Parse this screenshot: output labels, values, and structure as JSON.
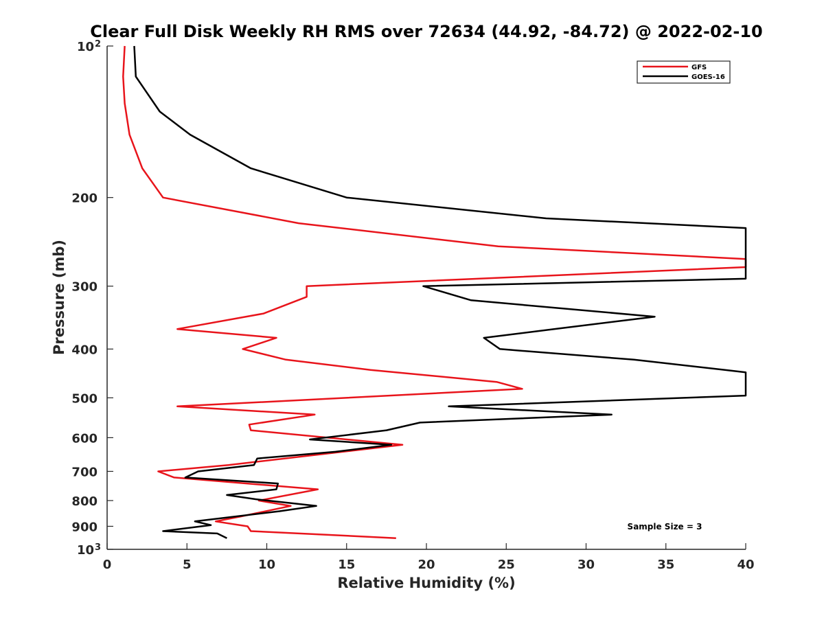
{
  "chart_data": {
    "type": "line",
    "title": "Clear Full Disk Weekly RH RMS over 72634 (44.92, -84.72) @ 2022-02-10",
    "xlabel": "Relative Humidity (%)",
    "ylabel": "Pressure (mb)",
    "xlim": [
      0,
      40
    ],
    "ylim": [
      100,
      1000
    ],
    "yscale": "log",
    "yreversed": true,
    "xticks": [
      0,
      5,
      10,
      15,
      20,
      25,
      30,
      35,
      40
    ],
    "xtick_labels": [
      "0",
      "5",
      "10",
      "15",
      "20",
      "25",
      "30",
      "35",
      "40"
    ],
    "yticks": [
      100,
      200,
      300,
      400,
      500,
      600,
      700,
      800,
      900,
      1000
    ],
    "ytick_labels": [
      {
        "base": "10",
        "exp": "2"
      },
      {
        "base": "200",
        "exp": ""
      },
      {
        "base": "300",
        "exp": ""
      },
      {
        "base": "400",
        "exp": ""
      },
      {
        "base": "500",
        "exp": ""
      },
      {
        "base": "600",
        "exp": ""
      },
      {
        "base": "700",
        "exp": ""
      },
      {
        "base": "800",
        "exp": ""
      },
      {
        "base": "900",
        "exp": ""
      },
      {
        "base": "10",
        "exp": "3"
      }
    ],
    "grid": false,
    "legend_position": "top-right",
    "annotation": "Sample Size = 3",
    "series": [
      {
        "name": "GFS",
        "color": "#e8141b",
        "points": [
          [
            1.1,
            100
          ],
          [
            1.0,
            115
          ],
          [
            1.1,
            130
          ],
          [
            1.4,
            150
          ],
          [
            2.2,
            175
          ],
          [
            3.5,
            200
          ],
          [
            12.0,
            225
          ],
          [
            24.5,
            250
          ],
          [
            40,
            265
          ],
          [
            40,
            275
          ],
          [
            12.5,
            300
          ],
          [
            12.5,
            315
          ],
          [
            9.8,
            340
          ],
          [
            4.4,
            365
          ],
          [
            10.6,
            380
          ],
          [
            8.5,
            400
          ],
          [
            11.2,
            420
          ],
          [
            16.5,
            440
          ],
          [
            24.4,
            465
          ],
          [
            26.0,
            480
          ],
          [
            4.4,
            520
          ],
          [
            13.0,
            540
          ],
          [
            8.9,
            565
          ],
          [
            9.0,
            580
          ],
          [
            18.5,
            620
          ],
          [
            7.6,
            680
          ],
          [
            3.2,
            700
          ],
          [
            4.2,
            720
          ],
          [
            13.2,
            760
          ],
          [
            9.5,
            800
          ],
          [
            11.5,
            820
          ],
          [
            8.4,
            860
          ],
          [
            6.8,
            880
          ],
          [
            8.8,
            900
          ],
          [
            9.0,
            920
          ],
          [
            18.1,
            950
          ]
        ]
      },
      {
        "name": "GOES-16",
        "color": "#000000",
        "points": [
          [
            1.7,
            100
          ],
          [
            1.8,
            115
          ],
          [
            3.3,
            135
          ],
          [
            5.2,
            150
          ],
          [
            9.0,
            175
          ],
          [
            15.0,
            200
          ],
          [
            27.5,
            220
          ],
          [
            40,
            230
          ],
          [
            40,
            290
          ],
          [
            19.8,
            300
          ],
          [
            22.8,
            320
          ],
          [
            34.3,
            345
          ],
          [
            28.0,
            365
          ],
          [
            23.6,
            380
          ],
          [
            24.6,
            400
          ],
          [
            33.0,
            420
          ],
          [
            38.7,
            440
          ],
          [
            40,
            445
          ],
          [
            40,
            495
          ],
          [
            21.4,
            520
          ],
          [
            31.6,
            540
          ],
          [
            19.6,
            560
          ],
          [
            17.5,
            580
          ],
          [
            12.7,
            605
          ],
          [
            17.8,
            620
          ],
          [
            14.3,
            640
          ],
          [
            9.4,
            660
          ],
          [
            9.2,
            680
          ],
          [
            5.7,
            700
          ],
          [
            4.9,
            720
          ],
          [
            10.7,
            740
          ],
          [
            10.6,
            760
          ],
          [
            7.5,
            780
          ],
          [
            9.3,
            795
          ],
          [
            13.1,
            820
          ],
          [
            10.8,
            840
          ],
          [
            5.5,
            880
          ],
          [
            6.5,
            895
          ],
          [
            3.5,
            920
          ],
          [
            6.9,
            930
          ],
          [
            7.5,
            950
          ]
        ]
      }
    ]
  }
}
